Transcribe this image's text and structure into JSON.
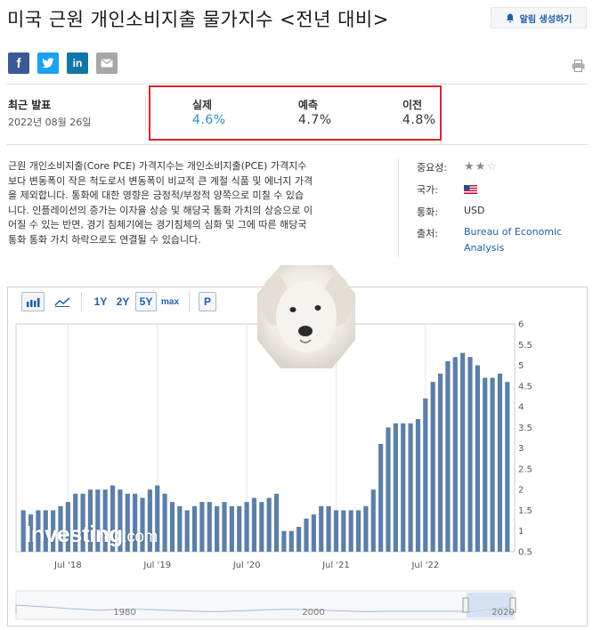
{
  "page": {
    "title": "미국 근원 개인소비지출 물가지수 <전년 대비>",
    "alert_button": "알림 생성하기"
  },
  "share": {
    "facebook": "f",
    "twitter": "t",
    "linkedin": "in",
    "icons": [
      "facebook-icon",
      "twitter-icon",
      "linkedin-icon",
      "email-icon",
      "print-icon"
    ]
  },
  "release": {
    "latest_label": "최근 발표",
    "latest_date": "2022년 08월 26일",
    "actual_label": "실제",
    "actual_value": "4.6%",
    "forecast_label": "예측",
    "forecast_value": "4.7%",
    "previous_label": "이전",
    "previous_value": "4.8%",
    "highlight_color": "#d9262e",
    "actual_color": "#2f8fc7"
  },
  "description": {
    "lines": [
      "근원 개인소비지출(Core PCE) 가격지수는 개인소비지출(PCE) 가격지수",
      "보다 변동폭이 작은 척도로서 변동폭이 비교적 큰 계절 식품 및 에너지 가격",
      "을 제외합니다. 통화에 대한 영향은 긍정적/부정적 양쪽으로 미칠 수 있습",
      "니다. 인플레이션의 증가는 이자율 상승 및 해당국 통화 가치의 상승으로 이",
      "어질 수 있는 반면, 경기 침체기에는 경기침체의 심화 및 그에 따른 해당국",
      "통화 통화 가치 하락으로도 연결될 수 있습니다."
    ]
  },
  "info": {
    "importance_label": "중요성:",
    "importance_stars": 2,
    "importance_max": 3,
    "country_label": "국가:",
    "country_flag": "us-flag-icon",
    "currency_label": "통화:",
    "currency_value": "USD",
    "source_label": "출처:",
    "source_line1": "Bureau of Economic",
    "source_line2": "Analysis"
  },
  "toolbar": {
    "bar_icon": "bar-chart-icon",
    "line_icon": "line-chart-icon",
    "range_1y": "1Y",
    "range_2y": "2Y",
    "range_5y": "5Y",
    "range_max": "max",
    "selected_range": "5Y",
    "p_button": "P"
  },
  "watermark": {
    "brand": "Investing",
    "suffix": ".com"
  },
  "chart_data": {
    "type": "bar",
    "bar_color": "#5b7fa8",
    "y_axis_position": "right",
    "ylim": [
      0.5,
      6
    ],
    "y_ticks": [
      "6",
      "5.5",
      "5",
      "4.5",
      "4",
      "3.5",
      "3",
      "2.5",
      "2",
      "1.5",
      "1",
      "0.5"
    ],
    "x_tick_labels": [
      "Jul '18",
      "Jul '19",
      "Jul '20",
      "Jul '21",
      "Jul '22"
    ],
    "grid": "vertical",
    "values": [
      1.5,
      1.4,
      1.5,
      1.5,
      1.5,
      1.6,
      1.7,
      1.9,
      1.9,
      2.0,
      2.0,
      2.0,
      2.1,
      2.0,
      1.9,
      1.9,
      1.8,
      2.0,
      2.1,
      1.9,
      1.7,
      1.6,
      1.5,
      1.6,
      1.7,
      1.7,
      1.6,
      1.7,
      1.6,
      1.6,
      1.7,
      1.8,
      1.7,
      1.8,
      1.9,
      1.0,
      1.0,
      1.1,
      1.3,
      1.4,
      1.6,
      1.6,
      1.5,
      1.5,
      1.5,
      1.5,
      1.6,
      2.0,
      3.1,
      3.5,
      3.6,
      3.6,
      3.6,
      3.7,
      4.2,
      4.6,
      4.8,
      5.1,
      5.2,
      5.3,
      5.2,
      5.0,
      4.7,
      4.7,
      4.8,
      4.6
    ],
    "navigator": {
      "labels": [
        "1980",
        "2000",
        "2020"
      ]
    }
  }
}
